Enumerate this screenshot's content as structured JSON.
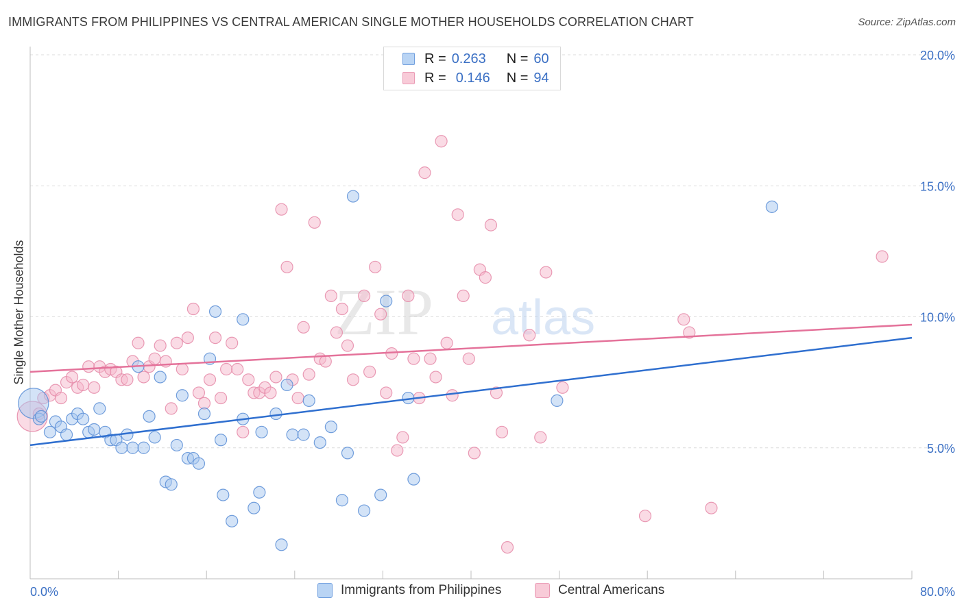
{
  "title": "IMMIGRANTS FROM PHILIPPINES VS CENTRAL AMERICAN SINGLE MOTHER HOUSEHOLDS CORRELATION CHART",
  "source": "Source: ZipAtlas.com",
  "watermark": {
    "zip": "ZIP",
    "atlas": "atlas"
  },
  "legend_top": [
    {
      "r_label": "R =",
      "r_value": "0.263",
      "n_label": "N =",
      "n_value": "60"
    },
    {
      "r_label": "R =",
      "r_value": "0.146",
      "n_label": "N =",
      "n_value": "94"
    }
  ],
  "legend_bottom": [
    {
      "label": "Immigrants from Philippines"
    },
    {
      "label": "Central Americans"
    }
  ],
  "colors": {
    "blue_fill": "#a8c8f0",
    "blue_stroke": "#5b8ed6",
    "blue_line": "#2f6fcf",
    "pink_fill": "#f5b8cb",
    "pink_stroke": "#e58aa8",
    "pink_line": "#e4729a",
    "axis_text": "#3a6fc4",
    "grid": "#dcdcdc"
  },
  "chart_data": {
    "type": "scatter",
    "title": "IMMIGRANTS FROM PHILIPPINES VS CENTRAL AMERICAN SINGLE MOTHER HOUSEHOLDS CORRELATION CHART",
    "xlabel": "",
    "ylabel": "Single Mother Households",
    "xlim": [
      0,
      80
    ],
    "ylim": [
      0,
      20
    ],
    "x_tick_labels": [
      "0.0%",
      "80.0%"
    ],
    "y_ticks": [
      5,
      10,
      15,
      20
    ],
    "y_tick_labels": [
      "5.0%",
      "10.0%",
      "15.0%",
      "20.0%"
    ],
    "grid": true,
    "legend_position": "top-center",
    "series": [
      {
        "name": "Immigrants from Philippines",
        "color": "#a8c8f0",
        "trend": {
          "x": [
            0,
            80
          ],
          "y": [
            5.1,
            9.2
          ]
        },
        "points": [
          [
            0.3,
            6.7
          ],
          [
            0.8,
            6.1
          ],
          [
            1.0,
            6.2
          ],
          [
            1.8,
            5.6
          ],
          [
            2.3,
            6.0
          ],
          [
            2.8,
            5.8
          ],
          [
            3.3,
            5.5
          ],
          [
            3.8,
            6.1
          ],
          [
            4.3,
            6.3
          ],
          [
            4.8,
            6.1
          ],
          [
            5.3,
            5.6
          ],
          [
            5.8,
            5.7
          ],
          [
            6.3,
            6.5
          ],
          [
            6.8,
            5.6
          ],
          [
            7.3,
            5.3
          ],
          [
            7.8,
            5.3
          ],
          [
            8.3,
            5.0
          ],
          [
            8.8,
            5.5
          ],
          [
            9.3,
            5.0
          ],
          [
            10.3,
            5.0
          ],
          [
            10.8,
            6.2
          ],
          [
            11.3,
            5.4
          ],
          [
            11.8,
            7.7
          ],
          [
            9.8,
            8.1
          ],
          [
            12.3,
            3.7
          ],
          [
            12.8,
            3.6
          ],
          [
            13.3,
            5.1
          ],
          [
            13.8,
            7.0
          ],
          [
            14.3,
            4.6
          ],
          [
            14.8,
            4.6
          ],
          [
            15.3,
            4.4
          ],
          [
            15.8,
            6.3
          ],
          [
            16.3,
            8.4
          ],
          [
            16.8,
            10.2
          ],
          [
            17.3,
            5.3
          ],
          [
            17.5,
            3.2
          ],
          [
            18.3,
            2.2
          ],
          [
            19.3,
            6.1
          ],
          [
            19.3,
            9.9
          ],
          [
            20.3,
            2.7
          ],
          [
            20.8,
            3.3
          ],
          [
            21.0,
            5.6
          ],
          [
            22.3,
            6.3
          ],
          [
            22.8,
            1.3
          ],
          [
            23.3,
            7.4
          ],
          [
            23.8,
            5.5
          ],
          [
            24.8,
            5.5
          ],
          [
            25.3,
            6.8
          ],
          [
            26.3,
            5.2
          ],
          [
            27.3,
            5.8
          ],
          [
            28.3,
            3.0
          ],
          [
            28.8,
            4.8
          ],
          [
            29.3,
            14.6
          ],
          [
            30.3,
            2.6
          ],
          [
            31.8,
            3.2
          ],
          [
            32.3,
            10.6
          ],
          [
            34.3,
            6.9
          ],
          [
            34.8,
            3.8
          ],
          [
            47.8,
            6.8
          ],
          [
            67.3,
            14.2
          ]
        ]
      },
      {
        "name": "Central Americans",
        "color": "#f5b8cb",
        "trend": {
          "x": [
            0,
            80
          ],
          "y": [
            7.9,
            9.7
          ]
        },
        "points": [
          [
            0.2,
            6.2
          ],
          [
            0.8,
            6.3
          ],
          [
            1.2,
            6.9
          ],
          [
            1.8,
            7.0
          ],
          [
            2.3,
            7.2
          ],
          [
            2.8,
            6.9
          ],
          [
            3.3,
            7.5
          ],
          [
            3.8,
            7.7
          ],
          [
            4.3,
            7.3
          ],
          [
            4.8,
            7.4
          ],
          [
            5.3,
            8.1
          ],
          [
            5.8,
            7.3
          ],
          [
            6.3,
            8.1
          ],
          [
            6.8,
            7.9
          ],
          [
            7.3,
            8.0
          ],
          [
            7.8,
            7.9
          ],
          [
            8.3,
            7.6
          ],
          [
            8.8,
            7.6
          ],
          [
            9.3,
            8.3
          ],
          [
            9.8,
            9.0
          ],
          [
            10.3,
            7.7
          ],
          [
            10.8,
            8.1
          ],
          [
            11.3,
            8.4
          ],
          [
            11.8,
            8.9
          ],
          [
            12.3,
            8.3
          ],
          [
            12.8,
            6.5
          ],
          [
            13.3,
            9.0
          ],
          [
            13.8,
            8.0
          ],
          [
            14.3,
            9.2
          ],
          [
            14.8,
            10.3
          ],
          [
            15.3,
            7.1
          ],
          [
            15.8,
            6.7
          ],
          [
            16.3,
            7.6
          ],
          [
            16.8,
            9.2
          ],
          [
            17.3,
            6.9
          ],
          [
            17.8,
            8.0
          ],
          [
            18.3,
            9.0
          ],
          [
            18.8,
            8.0
          ],
          [
            19.3,
            5.6
          ],
          [
            19.8,
            7.6
          ],
          [
            20.3,
            7.1
          ],
          [
            20.8,
            7.1
          ],
          [
            21.3,
            7.3
          ],
          [
            21.8,
            7.1
          ],
          [
            22.3,
            7.7
          ],
          [
            22.8,
            14.1
          ],
          [
            23.3,
            11.9
          ],
          [
            23.8,
            7.6
          ],
          [
            24.3,
            6.9
          ],
          [
            24.8,
            9.6
          ],
          [
            25.3,
            7.8
          ],
          [
            25.8,
            13.6
          ],
          [
            26.3,
            8.4
          ],
          [
            26.8,
            8.3
          ],
          [
            27.3,
            10.8
          ],
          [
            27.8,
            9.4
          ],
          [
            28.3,
            10.3
          ],
          [
            28.8,
            8.9
          ],
          [
            29.3,
            7.6
          ],
          [
            30.3,
            10.8
          ],
          [
            30.8,
            7.9
          ],
          [
            31.3,
            11.9
          ],
          [
            31.8,
            10.1
          ],
          [
            32.3,
            7.1
          ],
          [
            32.8,
            8.6
          ],
          [
            33.3,
            4.9
          ],
          [
            33.8,
            5.4
          ],
          [
            34.3,
            10.8
          ],
          [
            34.8,
            8.4
          ],
          [
            35.3,
            6.9
          ],
          [
            35.8,
            15.5
          ],
          [
            36.3,
            8.4
          ],
          [
            36.8,
            7.7
          ],
          [
            37.3,
            16.7
          ],
          [
            37.8,
            9.0
          ],
          [
            38.3,
            7.0
          ],
          [
            38.8,
            13.9
          ],
          [
            39.3,
            10.8
          ],
          [
            39.8,
            8.4
          ],
          [
            40.3,
            4.8
          ],
          [
            40.8,
            11.8
          ],
          [
            41.3,
            11.5
          ],
          [
            41.8,
            13.5
          ],
          [
            42.3,
            7.1
          ],
          [
            42.8,
            5.6
          ],
          [
            43.3,
            1.2
          ],
          [
            45.3,
            9.3
          ],
          [
            46.3,
            5.4
          ],
          [
            46.8,
            11.7
          ],
          [
            48.3,
            7.3
          ],
          [
            55.8,
            2.4
          ],
          [
            59.3,
            9.9
          ],
          [
            59.8,
            9.4
          ],
          [
            61.8,
            2.7
          ],
          [
            77.3,
            12.3
          ]
        ]
      }
    ]
  }
}
